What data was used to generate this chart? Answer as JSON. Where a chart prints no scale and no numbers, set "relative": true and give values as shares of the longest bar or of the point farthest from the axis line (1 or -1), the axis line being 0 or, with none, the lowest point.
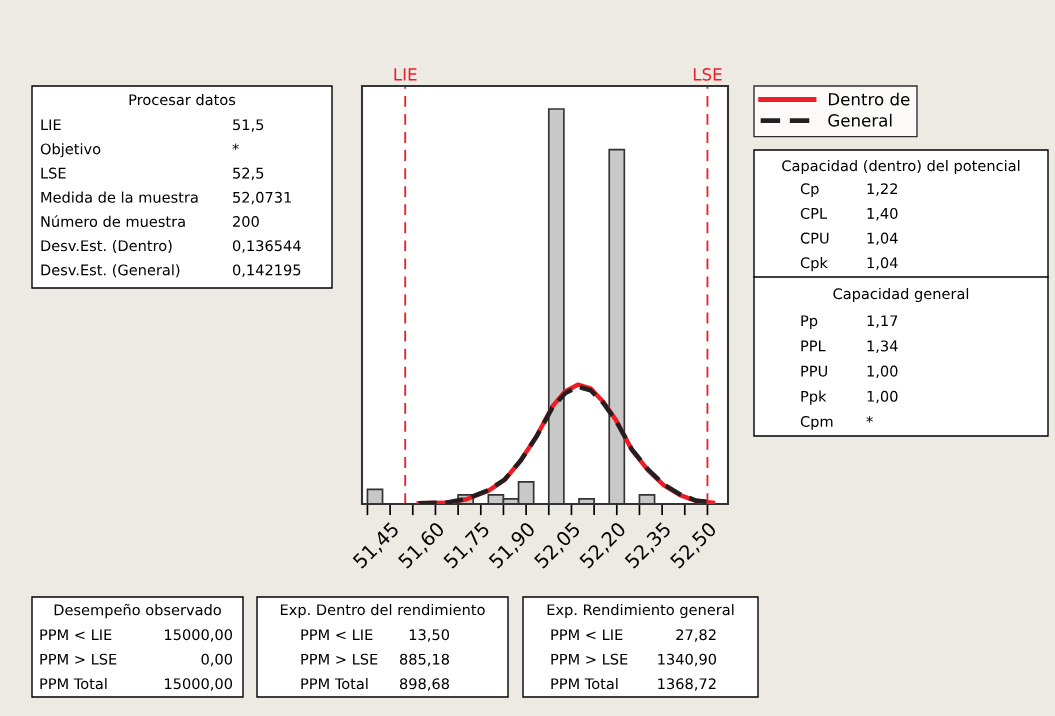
{
  "chart_data": {
    "type": "histogram",
    "relative": true,
    "bins": [
      51.375,
      51.425,
      51.475,
      51.525,
      51.575,
      51.625,
      51.675,
      51.725,
      51.775,
      51.825,
      51.875,
      51.925,
      51.975,
      52.025,
      52.075,
      52.125,
      52.175,
      52.225,
      52.275,
      52.325
    ],
    "values": [
      0.037,
      0,
      0,
      0,
      0,
      0,
      0.023,
      0,
      0.023,
      0.013,
      0.056,
      0,
      1,
      0,
      0.013,
      0,
      0.897,
      0,
      0.023
    ],
    "color": "#c8c8c8",
    "series": [
      {
        "name": "Dentro de",
        "type": "line",
        "color": "#ee1c24",
        "line_style": "solid",
        "x": [
          51.545,
          51.639,
          51.703,
          51.776,
          51.829,
          51.882,
          51.934,
          51.987,
          52.029,
          52.071,
          52.113,
          52.155,
          52.197,
          52.25,
          52.303,
          52.355,
          52.408,
          52.461,
          52.518
        ],
        "values": [
          0.002,
          0.003,
          0.012,
          0.034,
          0.061,
          0.11,
          0.171,
          0.247,
          0.285,
          0.302,
          0.293,
          0.259,
          0.213,
          0.137,
          0.086,
          0.048,
          0.023,
          0.008,
          0.003
        ]
      },
      {
        "name": "General",
        "type": "line",
        "color": "#231f20",
        "line_style": "dashed",
        "x": [
          51.545,
          51.639,
          51.703,
          51.776,
          51.829,
          51.882,
          51.934,
          51.987,
          52.029,
          52.071,
          52.113,
          52.155,
          52.197,
          52.25,
          52.303,
          52.355,
          52.408,
          52.461,
          52.518
        ],
        "values": [
          0.002,
          0.004,
          0.013,
          0.035,
          0.062,
          0.11,
          0.17,
          0.244,
          0.28,
          0.297,
          0.288,
          0.256,
          0.211,
          0.138,
          0.088,
          0.05,
          0.025,
          0.009,
          0.004
        ]
      }
    ],
    "xlim": [
      51.357,
      52.568
    ],
    "xticks": [
      {
        "value": 51.375,
        "label": null
      },
      {
        "value": 51.45,
        "label": "51,45"
      },
      {
        "value": 51.525,
        "label": null
      },
      {
        "value": 51.6,
        "label": "51,60"
      },
      {
        "value": 51.675,
        "label": null
      },
      {
        "value": 51.75,
        "label": "51,75"
      },
      {
        "value": 51.825,
        "label": null
      },
      {
        "value": 51.9,
        "label": "51,90"
      },
      {
        "value": 51.975,
        "label": null
      },
      {
        "value": 52.05,
        "label": "52,05"
      },
      {
        "value": 52.125,
        "label": null
      },
      {
        "value": 52.2,
        "label": "52,20"
      },
      {
        "value": 52.275,
        "label": null
      },
      {
        "value": 52.35,
        "label": "52,35"
      },
      {
        "value": 52.425,
        "label": null
      },
      {
        "value": 52.5,
        "label": "52,50"
      }
    ],
    "ref_lines": [
      {
        "axis": "x",
        "value": 51.5,
        "label": "LIE",
        "color": "#ee1c24",
        "line_style": "dashed"
      },
      {
        "axis": "x",
        "value": 52.5,
        "label": "LSE",
        "color": "#ee1c24",
        "line_style": "dashed"
      }
    ],
    "legend": "top right",
    "grid": false,
    "annotations": [
      "Procesar datos",
      "LIE 51,5",
      "Objetivo *",
      "LSE 52,5",
      "Medida de la muestra 52,0731",
      "Número de muestra 200",
      "Desv.Est. (Dentro) 0,136544",
      "Desv.Est. (General) 0,142195",
      "Capacidad (dentro) del potencial",
      "Cp 1,22",
      "CPL 1,40",
      "CPU 1,04",
      "Cpk 1,04",
      "Capacidad general",
      "Pp 1,17",
      "PPL 1,34",
      "PPU 1,00",
      "Ppk 1,00",
      "Cpm *",
      "Desempeño observado",
      "PPM < LIE 15000,00",
      "PPM > LSE 0,00",
      "PPM Total 15000,00",
      "Exp. Dentro del rendimiento",
      "PPM < LIE 13,50",
      "PPM > LSE 885,18",
      "PPM Total 898,68",
      "Exp. Rendimiento general",
      "PPM < LIE 27,82",
      "PPM > LSE 1340,90",
      "PPM Total 1368,72"
    ]
  }
}
